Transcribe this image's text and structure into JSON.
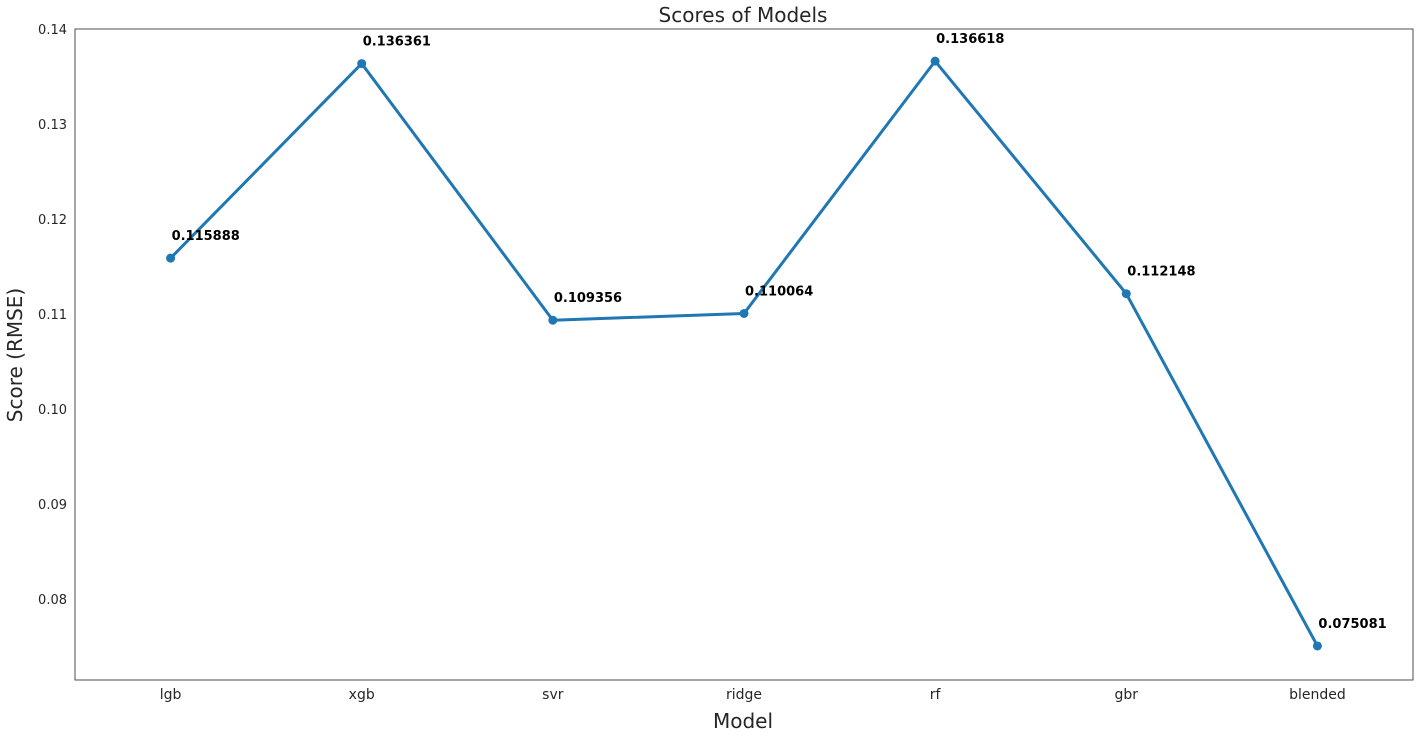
{
  "chart_data": {
    "type": "line",
    "title": "Scores of Models",
    "xlabel": "Model",
    "ylabel": "Score (RMSE)",
    "categories": [
      "lgb",
      "xgb",
      "svr",
      "ridge",
      "rf",
      "gbr",
      "blended"
    ],
    "series": [
      {
        "values": [
          0.115888,
          0.136361,
          0.109356,
          0.110064,
          0.136618,
          0.112148,
          0.075081
        ],
        "color": "#1f77b4"
      }
    ],
    "data_labels": [
      "0.115888",
      "0.136361",
      "0.109356",
      "0.110064",
      "0.136618",
      "0.112148",
      "0.075081"
    ],
    "ylim": [
      0.0715,
      0.14
    ],
    "yticks": [
      0.08,
      0.09,
      0.1,
      0.11,
      0.12,
      0.13,
      0.14
    ],
    "ytick_labels": [
      "0.08",
      "0.09",
      "0.10",
      "0.11",
      "0.12",
      "0.13",
      "0.14"
    ],
    "grid": false,
    "legend": "none"
  }
}
